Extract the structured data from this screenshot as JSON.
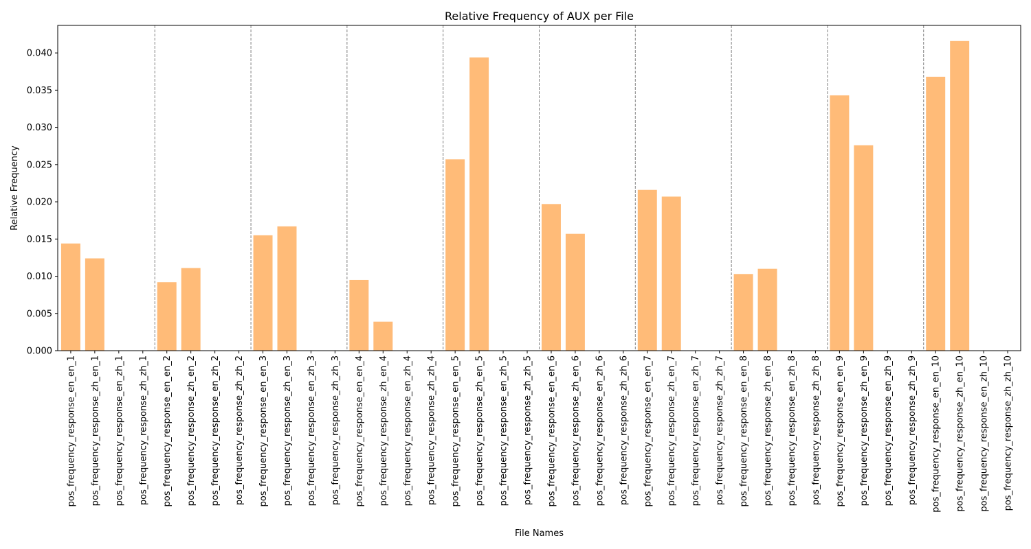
{
  "chart_data": {
    "type": "bar",
    "title": "Relative Frequency of AUX per File",
    "xlabel": "File Names",
    "ylabel": "Relative Frequency",
    "ylim": [
      0,
      0.0437
    ],
    "yticks": [
      "0.000",
      "0.005",
      "0.010",
      "0.015",
      "0.020",
      "0.025",
      "0.030",
      "0.035",
      "0.040"
    ],
    "bar_color": "#ffbb78",
    "separator_color": "#808080",
    "group_separators": "dashed vertical line between every group of 4 files",
    "grid": false,
    "categories": [
      "pos_frequency_response_en_en_1",
      "pos_frequency_response_zh_en_1",
      "pos_frequency_response_en_zh_1",
      "pos_frequency_response_zh_zh_1",
      "pos_frequency_response_en_en_2",
      "pos_frequency_response_zh_en_2",
      "pos_frequency_response_en_zh_2",
      "pos_frequency_response_zh_zh_2",
      "pos_frequency_response_en_en_3",
      "pos_frequency_response_zh_en_3",
      "pos_frequency_response_en_zh_3",
      "pos_frequency_response_zh_zh_3",
      "pos_frequency_response_en_en_4",
      "pos_frequency_response_zh_en_4",
      "pos_frequency_response_en_zh_4",
      "pos_frequency_response_zh_zh_4",
      "pos_frequency_response_en_en_5",
      "pos_frequency_response_zh_en_5",
      "pos_frequency_response_en_zh_5",
      "pos_frequency_response_zh_zh_5",
      "pos_frequency_response_en_en_6",
      "pos_frequency_response_zh_en_6",
      "pos_frequency_response_en_zh_6",
      "pos_frequency_response_zh_zh_6",
      "pos_frequency_response_en_en_7",
      "pos_frequency_response_zh_en_7",
      "pos_frequency_response_en_zh_7",
      "pos_frequency_response_zh_zh_7",
      "pos_frequency_response_en_en_8",
      "pos_frequency_response_zh_en_8",
      "pos_frequency_response_en_zh_8",
      "pos_frequency_response_zh_zh_8",
      "pos_frequency_response_en_en_9",
      "pos_frequency_response_zh_en_9",
      "pos_frequency_response_en_zh_9",
      "pos_frequency_response_zh_zh_9",
      "pos_frequency_response_en_en_10",
      "pos_frequency_response_zh_en_10",
      "pos_frequency_response_en_zh_10",
      "pos_frequency_response_zh_zh_10"
    ],
    "values": [
      0.0144,
      0.0124,
      0,
      0,
      0.0092,
      0.0111,
      0,
      0,
      0.0155,
      0.0167,
      0,
      0,
      0.0095,
      0.0039,
      0,
      0,
      0.0257,
      0.0394,
      0,
      0,
      0.0197,
      0.0157,
      0,
      0,
      0.0216,
      0.0207,
      0,
      0,
      0.0103,
      0.011,
      0,
      0,
      0.0343,
      0.0276,
      0,
      0,
      0.0368,
      0.0416,
      0,
      0
    ]
  }
}
